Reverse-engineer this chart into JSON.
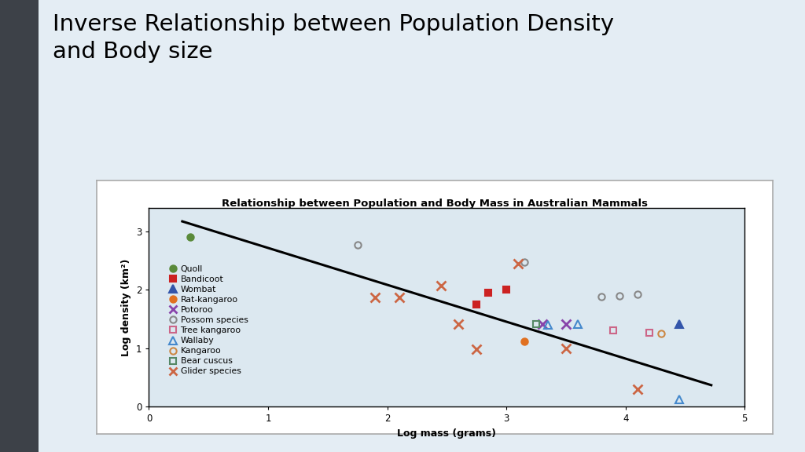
{
  "title": "Inverse Relationship between Population Density\nand Body size",
  "chart_title": "Relationship between Population and Body Mass in Australian Mammals",
  "xlabel": "Log mass (grams)",
  "ylabel": "Log density (km²)",
  "xlim": [
    0.0,
    5.0
  ],
  "ylim": [
    0.0,
    3.4
  ],
  "xticks": [
    0.0,
    1.0,
    2.0,
    3.0,
    4.0,
    5.0
  ],
  "yticks": [
    0.0,
    1.0,
    2.0,
    3.0
  ],
  "bg_color": "#dde8ef",
  "slide_bg": "#e4edf4",
  "plot_inner_bg": "#dce8f0",
  "sidebar_color": "#3d4148",
  "trend_line": [
    [
      0.28,
      3.17
    ],
    [
      4.72,
      0.37
    ]
  ],
  "species": [
    {
      "name": "Quoll",
      "marker": "o",
      "color": "#5a8a3a",
      "filled": true,
      "points": [
        [
          0.35,
          2.9
        ]
      ]
    },
    {
      "name": "Bandicoot",
      "marker": "s",
      "color": "#cc2222",
      "filled": true,
      "points": [
        [
          2.75,
          1.75
        ],
        [
          2.85,
          1.95
        ],
        [
          3.0,
          2.0
        ]
      ]
    },
    {
      "name": "Wombat",
      "marker": "^",
      "color": "#3355aa",
      "filled": true,
      "points": [
        [
          4.45,
          1.42
        ]
      ]
    },
    {
      "name": "Rat-kangaroo",
      "marker": "o",
      "color": "#e07020",
      "filled": true,
      "points": [
        [
          3.15,
          1.12
        ]
      ]
    },
    {
      "name": "Potoroo",
      "marker": "x",
      "color": "#8844aa",
      "filled": true,
      "points": [
        [
          3.3,
          1.42
        ],
        [
          3.5,
          1.42
        ]
      ]
    },
    {
      "name": "Possom species",
      "marker": "o",
      "color": "#888888",
      "filled": false,
      "points": [
        [
          1.75,
          2.77
        ],
        [
          3.15,
          2.47
        ],
        [
          3.8,
          1.88
        ],
        [
          3.95,
          1.9
        ],
        [
          4.1,
          1.92
        ]
      ]
    },
    {
      "name": "Tree kangaroo",
      "marker": "s",
      "color": "#cc6688",
      "filled": false,
      "points": [
        [
          3.9,
          1.3
        ],
        [
          4.2,
          1.27
        ]
      ]
    },
    {
      "name": "Wallaby",
      "marker": "^",
      "color": "#4488cc",
      "filled": false,
      "points": [
        [
          3.35,
          1.4
        ],
        [
          3.6,
          1.42
        ],
        [
          4.45,
          0.12
        ]
      ]
    },
    {
      "name": "Kangaroo",
      "marker": "o",
      "color": "#cc8844",
      "filled": false,
      "points": [
        [
          4.3,
          1.25
        ]
      ]
    },
    {
      "name": "Bear cuscus",
      "marker": "s",
      "color": "#558866",
      "filled": false,
      "points": [
        [
          3.25,
          1.42
        ]
      ]
    },
    {
      "name": "Glider species",
      "marker": "x",
      "color": "#cc6644",
      "filled": true,
      "points": [
        [
          1.9,
          1.87
        ],
        [
          2.1,
          1.87
        ],
        [
          2.45,
          2.07
        ],
        [
          2.6,
          1.42
        ],
        [
          2.75,
          0.99
        ],
        [
          3.1,
          2.45
        ],
        [
          3.5,
          1.0
        ],
        [
          4.1,
          0.3
        ]
      ]
    }
  ]
}
